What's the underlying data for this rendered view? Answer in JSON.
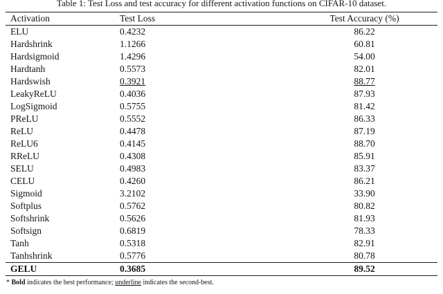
{
  "caption": "Table 1: Test Loss and test accuracy for different activation functions on CIFAR-10 dataset.",
  "table": {
    "headers": [
      "Activation",
      "Test Loss",
      "Test Accuracy (%)"
    ],
    "rows": [
      {
        "activation": "ELU",
        "loss": "0.4232",
        "acc": "86.22"
      },
      {
        "activation": "Hardshrink",
        "loss": "1.1266",
        "acc": "60.81"
      },
      {
        "activation": "Hardsigmoid",
        "loss": "1.4296",
        "acc": "54.00"
      },
      {
        "activation": "Hardtanh",
        "loss": "0.5573",
        "acc": "82.01"
      },
      {
        "activation": "Hardswish",
        "loss": "0.3921",
        "acc": "88.77",
        "loss_underline": true,
        "acc_underline": true
      },
      {
        "activation": "LeakyReLU",
        "loss": "0.4036",
        "acc": "87.93"
      },
      {
        "activation": "LogSigmoid",
        "loss": "0.5755",
        "acc": "81.42"
      },
      {
        "activation": "PReLU",
        "loss": "0.5552",
        "acc": "86.33"
      },
      {
        "activation": "ReLU",
        "loss": "0.4478",
        "acc": "87.19"
      },
      {
        "activation": "ReLU6",
        "loss": "0.4145",
        "acc": "88.70"
      },
      {
        "activation": "RReLU",
        "loss": "0.4308",
        "acc": "85.91"
      },
      {
        "activation": "SELU",
        "loss": "0.4983",
        "acc": "83.37"
      },
      {
        "activation": "CELU",
        "loss": "0.4260",
        "acc": "86.21"
      },
      {
        "activation": "Sigmoid",
        "loss": "3.2102",
        "acc": "33.90"
      },
      {
        "activation": "Softplus",
        "loss": "0.5762",
        "acc": "80.82"
      },
      {
        "activation": "Softshrink",
        "loss": "0.5626",
        "acc": "81.93"
      },
      {
        "activation": "Softsign",
        "loss": "0.6819",
        "acc": "78.33"
      },
      {
        "activation": "Tanh",
        "loss": "0.5318",
        "acc": "82.91"
      },
      {
        "activation": "Tanhshrink",
        "loss": "0.5776",
        "acc": "80.78"
      },
      {
        "activation": "GELU",
        "loss": "0.3685",
        "acc": "89.52",
        "bold": true,
        "rule_above": true
      }
    ]
  },
  "footnote": {
    "marker": "*",
    "bold_word": "Bold",
    "text_1": " indicates the best performance; ",
    "underline_word": "underline",
    "text_2": " indicates the second-best."
  }
}
